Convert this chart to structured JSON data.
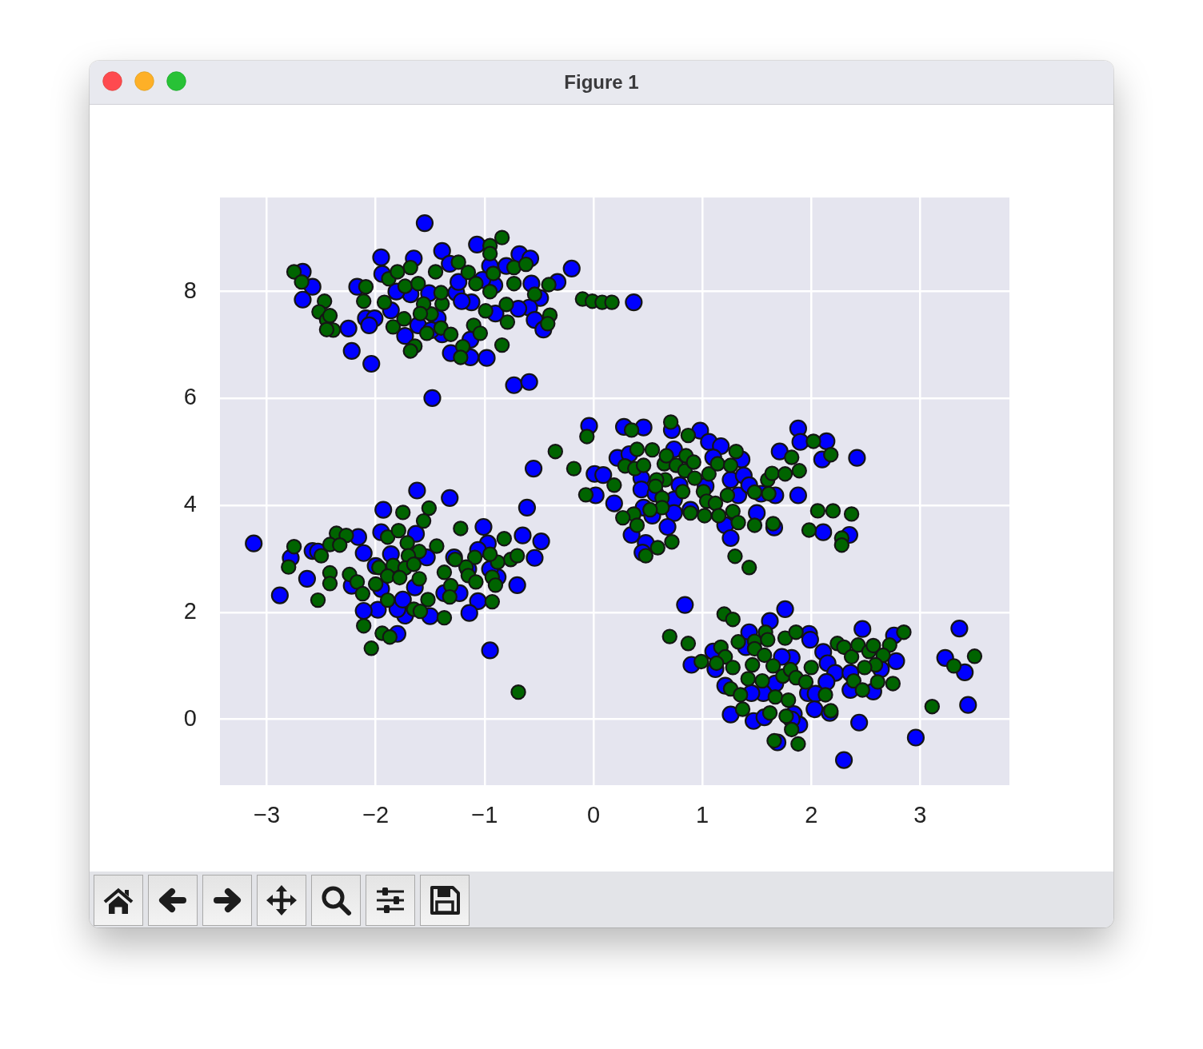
{
  "chart_data": {
    "type": "scatter",
    "title": "Figure 1",
    "xlim": [
      -3.43,
      3.82
    ],
    "ylim": [
      -1.23,
      9.76
    ],
    "xticks": [
      {
        "value": -3,
        "label": "−3"
      },
      {
        "value": -2,
        "label": "−2"
      },
      {
        "value": -1,
        "label": "−1"
      },
      0,
      1,
      2,
      3
    ],
    "yticks": [
      0,
      2,
      4,
      6,
      8
    ],
    "grid": true,
    "legend": false,
    "marker": "circle",
    "series": [
      {
        "color": "#0000ff",
        "x": [
          -1.55,
          -2.67,
          -2.58,
          -2.67,
          -2.17,
          -1.95,
          -1.94,
          -1.65,
          -1.39,
          -1.32,
          -1.07,
          -0.95,
          -0.68,
          -0.58,
          -0.8,
          -0.2,
          -0.33,
          -0.57,
          -0.49,
          -0.59,
          -0.69,
          -0.54,
          -0.46,
          0.37,
          -0.9,
          -0.91,
          -1.02,
          -1.12,
          -1.26,
          -1.24,
          -1.51,
          -1.68,
          -1.81,
          -1.86,
          -1.73,
          -1.39,
          -1.13,
          -1.31,
          -1.13,
          -0.98,
          -0.73,
          -0.59,
          -1.48,
          -2.25,
          -2.22,
          -2.04,
          -2.09,
          -2.01,
          -2.06,
          -1.61,
          -1.43,
          -1.21,
          -1.49,
          -3.12,
          -2.88,
          -2.78,
          -2.63,
          -2.58,
          -2.53,
          -2.16,
          -2.11,
          -2.22,
          -1.93,
          -1.95,
          -1.86,
          -1.62,
          -1.32,
          -0.61,
          -1.01,
          -0.65,
          -0.48,
          -0.54,
          -0.7,
          -0.97,
          -1.28,
          -1.23,
          -1.37,
          -1.06,
          -1.14,
          -1.5,
          -1.73,
          -1.8,
          -1.98,
          -2.11,
          -1.8,
          -0.95,
          -1.53,
          -1.63,
          -1.64,
          -1.75,
          -1.95,
          -2.0,
          -0.88,
          -0.95,
          -1.15,
          -1.06,
          -0.04,
          -0.55,
          0.28,
          0.46,
          0.72,
          0.98,
          1.06,
          1.17,
          0.01,
          0.09,
          0.02,
          0.19,
          0.22,
          0.33,
          0.44,
          0.44,
          0.57,
          0.74,
          0.79,
          0.74,
          0.74,
          0.68,
          0.35,
          0.46,
          0.54,
          0.48,
          0.45,
          0.89,
          1.1,
          1.26,
          1.36,
          1.38,
          1.33,
          1.21,
          1.26,
          1.5,
          1.66,
          1.67,
          1.71,
          1.88,
          1.9,
          2.14,
          2.1,
          2.42,
          1.88,
          2.11,
          2.35,
          1.03,
          1.54,
          1.43,
          0.84,
          0.9,
          1.12,
          1.1,
          1.21,
          1.26,
          1.47,
          1.57,
          1.62,
          1.76,
          1.43,
          1.4,
          1.82,
          1.73,
          1.67,
          1.56,
          1.84,
          1.89,
          1.69,
          1.98,
          1.99,
          2.11,
          2.15,
          2.22,
          2.14,
          1.97,
          2.04,
          2.03,
          2.17,
          2.47,
          2.76,
          2.78,
          2.64,
          2.36,
          2.57,
          2.44,
          2.96,
          2.3,
          3.36,
          3.23,
          3.41,
          3.44,
          2.36,
          1.82,
          1.45
        ],
        "values": [
          9.28,
          8.37,
          8.09,
          7.85,
          8.09,
          8.64,
          8.33,
          8.62,
          8.76,
          8.52,
          8.88,
          8.48,
          8.7,
          8.62,
          8.48,
          8.43,
          8.18,
          8.15,
          7.88,
          7.7,
          7.68,
          7.47,
          7.29,
          7.8,
          7.59,
          8.12,
          8.22,
          7.8,
          7.98,
          8.18,
          7.97,
          7.95,
          8.0,
          7.65,
          7.17,
          7.2,
          7.1,
          6.85,
          6.77,
          6.76,
          6.25,
          6.31,
          6.01,
          7.31,
          6.89,
          6.65,
          7.5,
          7.5,
          7.37,
          7.37,
          7.5,
          7.82,
          7.28,
          3.29,
          2.32,
          3.02,
          2.63,
          3.15,
          3.14,
          3.41,
          3.11,
          2.5,
          3.92,
          3.5,
          3.09,
          4.28,
          4.14,
          3.96,
          3.6,
          3.44,
          3.33,
          3.02,
          2.51,
          3.29,
          3.03,
          2.36,
          2.36,
          2.21,
          1.99,
          1.93,
          1.94,
          2.06,
          2.05,
          2.03,
          1.6,
          1.29,
          3.03,
          3.47,
          2.47,
          2.24,
          2.44,
          2.87,
          2.66,
          2.81,
          2.81,
          3.17,
          5.49,
          4.69,
          5.47,
          5.46,
          5.41,
          5.4,
          5.19,
          5.11,
          4.59,
          4.57,
          4.19,
          4.04,
          4.89,
          4.96,
          4.51,
          4.3,
          4.22,
          5.05,
          4.38,
          4.11,
          3.86,
          3.6,
          3.45,
          3.96,
          3.81,
          3.3,
          3.12,
          3.92,
          4.9,
          4.48,
          4.86,
          4.56,
          4.19,
          3.63,
          3.39,
          3.86,
          3.59,
          4.19,
          5.01,
          5.44,
          5.19,
          5.2,
          4.86,
          4.89,
          4.19,
          3.5,
          3.45,
          4.36,
          4.22,
          4.38,
          2.14,
          1.02,
          0.94,
          1.27,
          0.63,
          0.09,
          -0.03,
          0.04,
          1.84,
          2.06,
          1.63,
          1.35,
          1.15,
          1.17,
          0.67,
          0.49,
          0.1,
          -0.1,
          -0.43,
          1.6,
          1.49,
          1.26,
          1.05,
          0.87,
          0.7,
          0.49,
          0.48,
          0.19,
          0.12,
          1.69,
          1.57,
          1.09,
          0.94,
          0.55,
          0.52,
          -0.06,
          -0.34,
          -0.76,
          1.7,
          1.15,
          0.88,
          0.27,
          0.87,
          0.0,
          0.49
        ]
      },
      {
        "color": "#006400",
        "x": [
          -2.75,
          -2.68,
          -2.47,
          -2.52,
          -2.45,
          -2.42,
          -2.39,
          -2.45,
          -2.09,
          -2.11,
          -1.92,
          -1.88,
          -1.8,
          -1.68,
          -1.73,
          -1.61,
          -1.84,
          -1.74,
          -1.64,
          -1.68,
          -1.53,
          -1.49,
          -1.56,
          -1.59,
          -1.39,
          -1.4,
          -1.45,
          -1.24,
          -1.15,
          -1.08,
          -0.95,
          -0.84,
          -0.95,
          -0.92,
          -0.95,
          -0.8,
          -0.79,
          -0.73,
          -0.73,
          -0.62,
          -0.99,
          -0.84,
          -1.1,
          -1.04,
          -1.2,
          -1.22,
          -1.4,
          -1.31,
          -0.54,
          -0.41,
          -0.4,
          -0.42,
          -0.1,
          -0.01,
          0.08,
          0.17,
          -2.75,
          -2.8,
          -2.5,
          -2.36,
          -2.27,
          -2.42,
          -2.33,
          -2.42,
          -2.42,
          -2.53,
          -2.24,
          -2.17,
          -2.12,
          -2.11,
          -2.04,
          -1.94,
          -1.87,
          -2.0,
          -1.97,
          -1.89,
          -1.79,
          -1.75,
          -1.51,
          -1.56,
          -1.71,
          -1.6,
          -1.7,
          -1.84,
          -1.73,
          -1.65,
          -1.6,
          -1.89,
          -1.78,
          -1.44,
          -1.22,
          -0.82,
          -0.76,
          -0.7,
          -0.88,
          -0.95,
          -1.09,
          -1.17,
          -1.15,
          -1.08,
          -0.93,
          -0.9,
          -1.37,
          -1.27,
          -1.31,
          -1.32,
          -1.52,
          -1.65,
          -1.59,
          -1.37,
          -0.93,
          -1.89,
          -0.69,
          0.71,
          -0.06,
          -0.35,
          -0.18,
          0.19,
          -0.07,
          0.35,
          0.4,
          0.54,
          0.29,
          0.38,
          0.46,
          0.65,
          0.67,
          0.76,
          0.87,
          0.85,
          0.84,
          0.92,
          0.93,
          1.06,
          1.14,
          1.26,
          1.31,
          0.66,
          0.58,
          0.57,
          0.82,
          0.63,
          0.63,
          1.01,
          1.04,
          1.12,
          1.23,
          0.89,
          1.02,
          1.15,
          1.28,
          1.33,
          0.52,
          0.37,
          0.27,
          0.4,
          0.59,
          0.48,
          0.72,
          1.3,
          1.43,
          1.48,
          1.61,
          1.6,
          1.64,
          1.76,
          1.89,
          1.82,
          2.02,
          2.18,
          1.48,
          1.65,
          2.06,
          2.2,
          2.37,
          1.98,
          2.28,
          2.28,
          0.7,
          0.87,
          0.99,
          1.2,
          1.28,
          1.17,
          1.21,
          1.13,
          1.28,
          1.33,
          1.48,
          1.48,
          1.58,
          1.6,
          1.57,
          1.46,
          1.65,
          1.76,
          1.86,
          1.74,
          1.55,
          1.42,
          1.26,
          1.35,
          1.37,
          1.67,
          1.79,
          1.62,
          1.77,
          1.82,
          1.88,
          1.66,
          1.81,
          1.86,
          1.95,
          2.0,
          2.13,
          2.18,
          2.24,
          2.3,
          2.37,
          2.43,
          2.53,
          2.57,
          2.72,
          2.66,
          2.59,
          2.49,
          2.39,
          2.47,
          2.61,
          2.75,
          2.85,
          3.11,
          3.31,
          3.5
        ],
        "values": [
          8.37,
          8.18,
          7.82,
          7.62,
          7.47,
          7.55,
          7.28,
          7.29,
          8.09,
          7.82,
          7.8,
          8.24,
          8.37,
          8.45,
          8.1,
          8.15,
          7.34,
          7.49,
          6.98,
          6.89,
          7.22,
          7.58,
          7.77,
          7.59,
          7.77,
          7.98,
          8.37,
          8.55,
          8.36,
          8.15,
          8.86,
          9.01,
          8.71,
          8.34,
          8.0,
          7.76,
          7.43,
          8.15,
          8.45,
          8.51,
          7.64,
          7.0,
          7.37,
          7.22,
          6.97,
          6.77,
          7.32,
          7.2,
          7.95,
          8.13,
          7.56,
          7.4,
          7.86,
          7.82,
          7.8,
          7.8,
          3.23,
          2.85,
          3.06,
          3.48,
          3.44,
          3.27,
          3.26,
          2.74,
          2.54,
          2.23,
          2.71,
          2.57,
          2.35,
          1.75,
          1.33,
          1.61,
          1.54,
          2.53,
          2.84,
          3.41,
          3.53,
          3.87,
          3.95,
          3.71,
          3.3,
          3.14,
          3.06,
          2.88,
          2.83,
          2.9,
          2.63,
          2.68,
          2.65,
          3.24,
          3.57,
          3.38,
          2.99,
          3.06,
          2.94,
          3.09,
          3.03,
          2.85,
          2.69,
          2.57,
          2.66,
          2.51,
          2.75,
          2.99,
          2.5,
          2.29,
          2.24,
          2.06,
          2.02,
          1.9,
          2.2,
          2.23,
          0.51,
          5.56,
          5.29,
          5.01,
          4.69,
          4.38,
          4.2,
          5.41,
          5.05,
          5.04,
          4.74,
          4.69,
          4.75,
          4.78,
          4.93,
          4.75,
          5.31,
          4.93,
          4.65,
          4.81,
          4.51,
          4.59,
          4.78,
          4.75,
          5.01,
          4.48,
          4.48,
          4.36,
          4.26,
          4.14,
          3.96,
          4.26,
          4.08,
          4.04,
          4.19,
          3.86,
          3.81,
          3.81,
          3.89,
          3.68,
          3.92,
          3.84,
          3.77,
          3.63,
          3.21,
          3.06,
          3.32,
          3.05,
          2.84,
          4.25,
          4.22,
          4.48,
          4.6,
          4.59,
          4.65,
          4.9,
          5.2,
          4.95,
          3.63,
          3.66,
          3.9,
          3.9,
          3.84,
          3.54,
          3.39,
          3.26,
          1.55,
          1.42,
          1.08,
          1.97,
          1.87,
          1.35,
          1.17,
          1.05,
          0.97,
          1.45,
          1.46,
          1.32,
          1.63,
          1.49,
          1.2,
          1.02,
          1.0,
          1.52,
          1.63,
          0.81,
          0.72,
          0.76,
          0.57,
          0.46,
          0.19,
          0.42,
          0.36,
          0.12,
          0.06,
          -0.19,
          -0.46,
          -0.4,
          0.93,
          0.78,
          0.7,
          0.97,
          0.46,
          0.16,
          1.42,
          1.35,
          1.17,
          1.39,
          1.27,
          1.38,
          1.39,
          1.2,
          1.02,
          0.97,
          0.72,
          0.55,
          0.7,
          0.67,
          1.63,
          0.24,
          1.0,
          1.18
        ]
      }
    ]
  }
}
